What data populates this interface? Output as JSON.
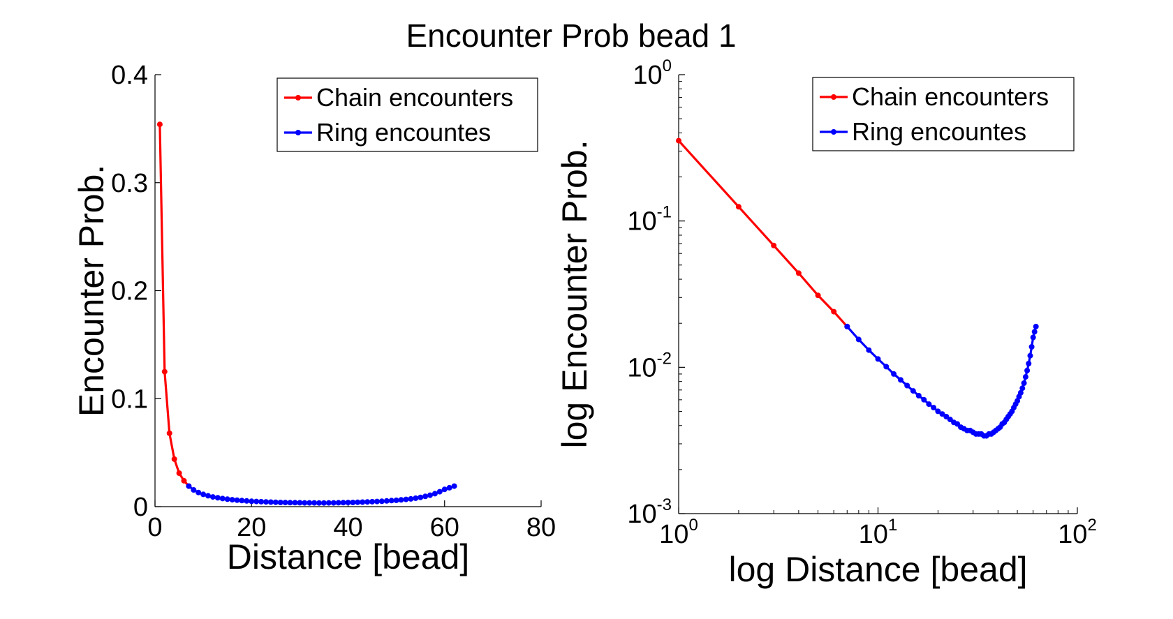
{
  "figure": {
    "title": "Encounter Prob bead 1"
  },
  "colors": {
    "chain": "#ff0000",
    "ring": "#0000ff",
    "axis": "#000000"
  },
  "chart_data": [
    {
      "type": "line",
      "title": "",
      "xlabel": "Distance [bead]",
      "ylabel": "Encounter Prob.",
      "xlim": [
        0,
        80
      ],
      "ylim": [
        0,
        0.4
      ],
      "xscale": "linear",
      "yscale": "linear",
      "x_ticks": [
        0,
        20,
        40,
        60,
        80
      ],
      "x_tick_labels": [
        "0",
        "20",
        "40",
        "60",
        "80"
      ],
      "y_ticks": [
        0,
        0.1,
        0.2,
        0.3,
        0.4
      ],
      "y_tick_labels": [
        "0",
        "0.1",
        "0.2",
        "0.3",
        "0.4"
      ],
      "grid": false,
      "legend_position": "top-right",
      "legend": [
        "Chain encounters",
        "Ring encountes"
      ],
      "series": [
        {
          "name": "Chain encounters",
          "color": "#ff0000",
          "x": [
            1,
            2,
            3,
            4,
            5,
            6,
            7
          ],
          "y": [
            0.354,
            0.125,
            0.068,
            0.044,
            0.031,
            0.024,
            0.019
          ]
        },
        {
          "name": "Ring encountes",
          "color": "#0000ff",
          "x": [
            7,
            8,
            9,
            10,
            11,
            12,
            13,
            14,
            15,
            16,
            17,
            18,
            19,
            20,
            21,
            22,
            23,
            24,
            25,
            26,
            27,
            28,
            29,
            30,
            31,
            32,
            33,
            34,
            35,
            36,
            37,
            38,
            39,
            40,
            41,
            42,
            43,
            44,
            45,
            46,
            47,
            48,
            49,
            50,
            51,
            52,
            53,
            54,
            55,
            56,
            57,
            58,
            59,
            60,
            61,
            62
          ],
          "y": [
            0.019,
            0.0155,
            0.0131,
            0.0114,
            0.0101,
            0.009,
            0.0082,
            0.0075,
            0.0069,
            0.0064,
            0.006,
            0.0056,
            0.0053,
            0.005,
            0.0048,
            0.0046,
            0.0044,
            0.0042,
            0.0041,
            0.0039,
            0.0038,
            0.0037,
            0.0037,
            0.0036,
            0.0035,
            0.0035,
            0.0035,
            0.0034,
            0.0034,
            0.0035,
            0.0035,
            0.0036,
            0.0037,
            0.0038,
            0.0039,
            0.0041,
            0.0042,
            0.0044,
            0.0046,
            0.0048,
            0.005,
            0.0053,
            0.0056,
            0.0059,
            0.0063,
            0.0067,
            0.0072,
            0.0078,
            0.0086,
            0.0095,
            0.0106,
            0.012,
            0.0138,
            0.016,
            0.0175,
            0.019
          ]
        }
      ]
    },
    {
      "type": "line",
      "title": "",
      "xlabel": "log Distance [bead]",
      "ylabel": "log Encounter Prob.",
      "xlim": [
        1,
        100
      ],
      "ylim": [
        0.001,
        1
      ],
      "xscale": "log",
      "yscale": "log",
      "x_ticks": [
        1,
        10,
        100
      ],
      "x_tick_labels": [
        {
          "base": "10",
          "exp": "0"
        },
        {
          "base": "10",
          "exp": "1"
        },
        {
          "base": "10",
          "exp": "2"
        }
      ],
      "y_ticks": [
        0.001,
        0.01,
        0.1,
        1
      ],
      "y_tick_labels": [
        {
          "base": "10",
          "exp": "-3"
        },
        {
          "base": "10",
          "exp": "-2"
        },
        {
          "base": "10",
          "exp": "-1"
        },
        {
          "base": "10",
          "exp": "0"
        }
      ],
      "grid": false,
      "legend_position": "top-right",
      "legend": [
        "Chain encounters",
        "Ring encountes"
      ],
      "series": [
        {
          "name": "Chain encounters",
          "color": "#ff0000",
          "x": [
            1,
            2,
            3,
            4,
            5,
            6,
            7
          ],
          "y": [
            0.354,
            0.125,
            0.068,
            0.044,
            0.031,
            0.024,
            0.019
          ]
        },
        {
          "name": "Ring encountes",
          "color": "#0000ff",
          "x": [
            7,
            8,
            9,
            10,
            11,
            12,
            13,
            14,
            15,
            16,
            17,
            18,
            19,
            20,
            21,
            22,
            23,
            24,
            25,
            26,
            27,
            28,
            29,
            30,
            31,
            32,
            33,
            34,
            35,
            36,
            37,
            38,
            39,
            40,
            41,
            42,
            43,
            44,
            45,
            46,
            47,
            48,
            49,
            50,
            51,
            52,
            53,
            54,
            55,
            56,
            57,
            58,
            59,
            60,
            61,
            62
          ],
          "y": [
            0.019,
            0.0155,
            0.0131,
            0.0114,
            0.0101,
            0.009,
            0.0082,
            0.0075,
            0.0069,
            0.0064,
            0.006,
            0.0056,
            0.0053,
            0.005,
            0.0048,
            0.0046,
            0.0044,
            0.0042,
            0.0041,
            0.0039,
            0.0038,
            0.0037,
            0.0037,
            0.0036,
            0.0035,
            0.0035,
            0.0035,
            0.0034,
            0.0034,
            0.0035,
            0.0035,
            0.0036,
            0.0037,
            0.0038,
            0.0039,
            0.0041,
            0.0042,
            0.0044,
            0.0046,
            0.0048,
            0.005,
            0.0053,
            0.0056,
            0.0059,
            0.0063,
            0.0067,
            0.0072,
            0.0078,
            0.0086,
            0.0095,
            0.0106,
            0.012,
            0.0138,
            0.016,
            0.0175,
            0.019
          ]
        }
      ]
    }
  ]
}
